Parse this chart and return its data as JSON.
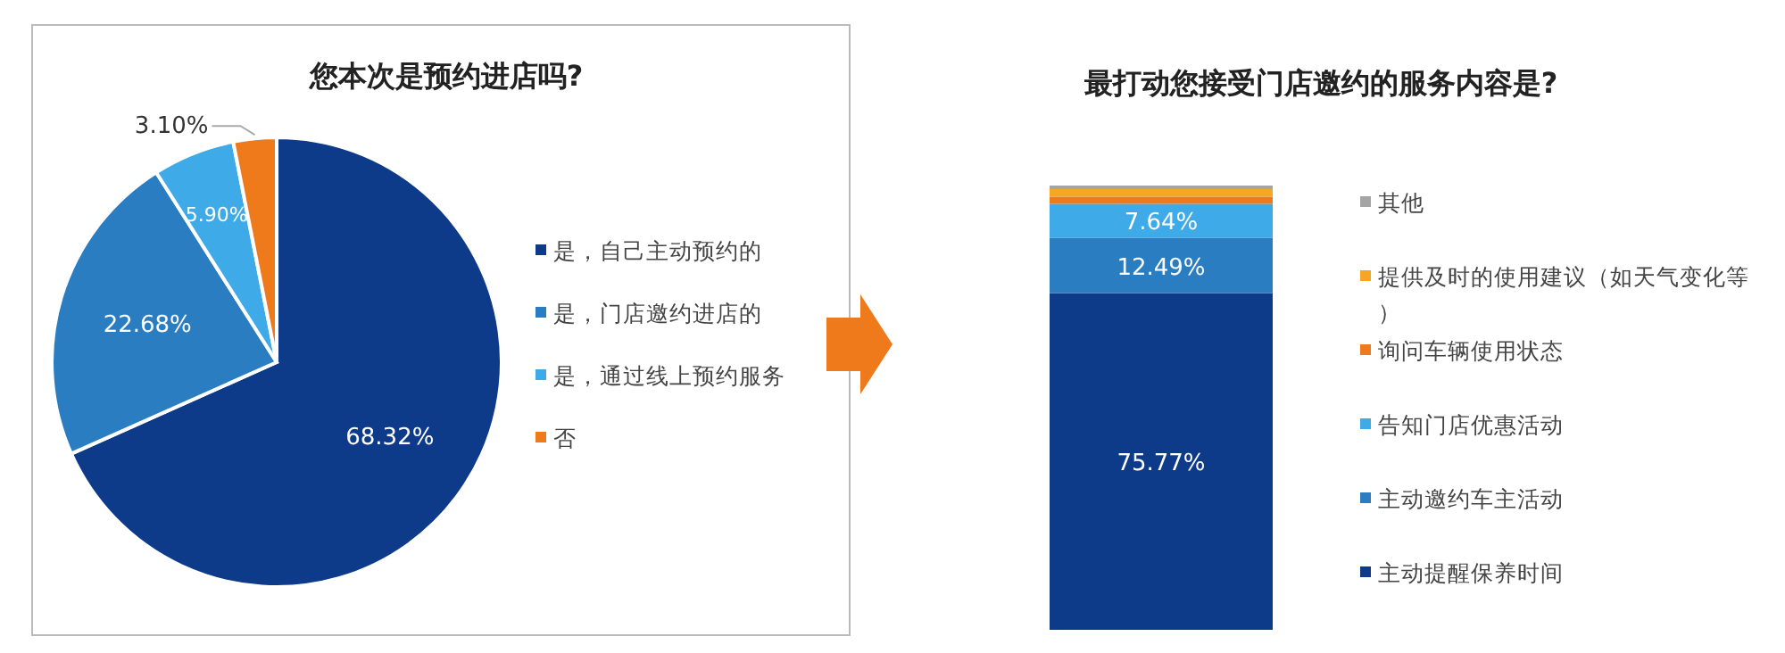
{
  "chart_data": [
    {
      "type": "pie",
      "title": "您本次是预约进店吗?",
      "categories": [
        "是，自己主动预约的",
        "是，门店邀约进店的",
        "是，通过线上预约服务",
        "否"
      ],
      "values": [
        68.32,
        22.68,
        5.9,
        3.1
      ],
      "value_labels": [
        "68.32%",
        "22.68%",
        "5.90%",
        "3.10%"
      ],
      "colors": [
        "#0e3a8a",
        "#2a7dc0",
        "#3eaae8",
        "#ee7a1c"
      ],
      "legend": "right"
    },
    {
      "type": "bar",
      "title": "最打动您接受门店邀约的服务内容是?",
      "categories": [
        null
      ],
      "stacked": true,
      "ylim": [
        0,
        100
      ],
      "legend": "right",
      "series": [
        {
          "name": "主动提醒保养时间",
          "color": "#0e3a8a",
          "values": [
            75.77
          ],
          "value_labels": [
            "75.77%"
          ]
        },
        {
          "name": "主动邀约车主活动",
          "color": "#2a7dc0",
          "values": [
            12.49
          ],
          "value_labels": [
            "12.49%"
          ]
        },
        {
          "name": "告知门店优惠活动",
          "color": "#3eaae8",
          "values": [
            7.64
          ],
          "value_labels": [
            "7.64%"
          ]
        },
        {
          "name": "询问车辆使用状态",
          "color": "#ee7a1c",
          "values": [
            1.6
          ],
          "value_labels": [
            null
          ]
        },
        {
          "name": "提供及时的使用建议（如天气变化等）",
          "color": "#f6a623",
          "values": [
            1.7
          ],
          "value_labels": [
            null
          ]
        },
        {
          "name": "其他",
          "color": "#a5a5a5",
          "values": [
            0.8
          ],
          "value_labels": [
            null
          ]
        }
      ]
    }
  ]
}
